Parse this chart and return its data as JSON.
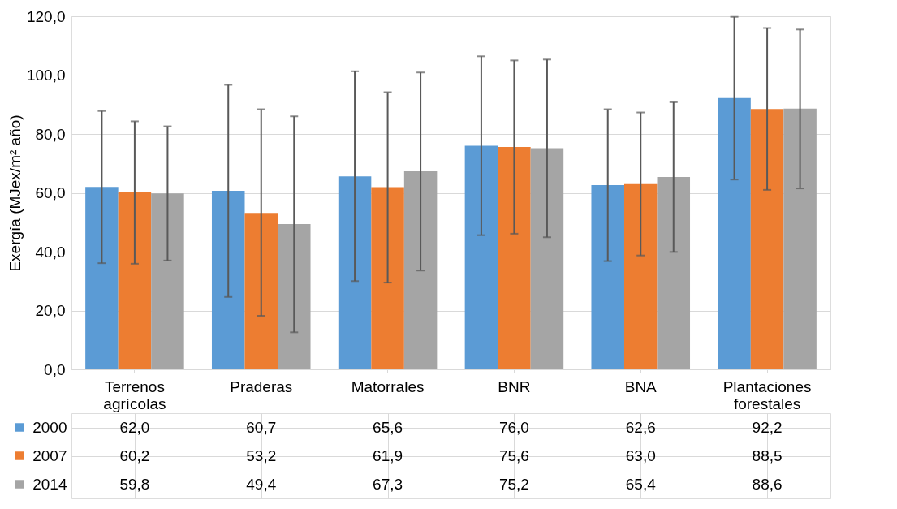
{
  "chart_data": {
    "type": "bar",
    "ylabel": "Exergía (MJex/m² año)",
    "categories": [
      "Terrenos agrícolas",
      "Praderas",
      "Matorrales",
      "BNR",
      "BNA",
      "Plantaciones forestales"
    ],
    "series": [
      {
        "name": "2000",
        "color": "#5b9bd5",
        "values": [
          62.0,
          60.7,
          65.6,
          76.0,
          62.6,
          92.2
        ],
        "value_labels": [
          "62,0",
          "60,7",
          "65,6",
          "76,0",
          "62,6",
          "92,2"
        ],
        "errors": [
          [
            36.1,
            87.8
          ],
          [
            24.6,
            96.7
          ],
          [
            30.0,
            101.3
          ],
          [
            45.6,
            106.4
          ],
          [
            36.8,
            88.4
          ],
          [
            64.5,
            119.8
          ]
        ]
      },
      {
        "name": "2007",
        "color": "#ed7d31",
        "values": [
          60.2,
          53.2,
          61.9,
          75.6,
          63.0,
          88.5
        ],
        "value_labels": [
          "60,2",
          "53,2",
          "61,9",
          "75,6",
          "63,0",
          "88,5"
        ],
        "errors": [
          [
            35.9,
            84.3
          ],
          [
            18.2,
            88.4
          ],
          [
            29.5,
            94.2
          ],
          [
            46.1,
            105.0
          ],
          [
            38.7,
            87.3
          ],
          [
            61.0,
            116.0
          ]
        ]
      },
      {
        "name": "2014",
        "color": "#a5a5a5",
        "values": [
          59.8,
          49.4,
          67.3,
          75.2,
          65.4,
          88.6
        ],
        "value_labels": [
          "59,8",
          "49,4",
          "67,3",
          "75,2",
          "65,4",
          "88,6"
        ],
        "errors": [
          [
            37.0,
            82.6
          ],
          [
            12.6,
            86.0
          ],
          [
            33.6,
            100.9
          ],
          [
            44.9,
            105.3
          ],
          [
            39.9,
            90.8
          ],
          [
            61.5,
            115.5
          ]
        ]
      }
    ],
    "ylim": [
      0,
      120
    ],
    "yticks": [
      {
        "value": 0,
        "label": "0,0"
      },
      {
        "value": 20,
        "label": "20,0"
      },
      {
        "value": 40,
        "label": "40,0"
      },
      {
        "value": 60,
        "label": "60,0"
      },
      {
        "value": 80,
        "label": "80,0"
      },
      {
        "value": 100,
        "label": "100,0"
      },
      {
        "value": 120,
        "label": "120,0"
      }
    ],
    "grid": "y",
    "legend": "bottom"
  }
}
